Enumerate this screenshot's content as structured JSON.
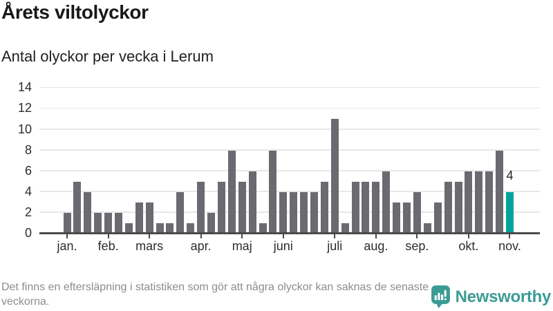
{
  "header": {
    "title": "Årets viltolyckor",
    "subtitle": "Antal olyckor per vecka i Lerum"
  },
  "chart_data": {
    "type": "bar",
    "title": "Årets viltolyckor",
    "subtitle": "Antal olyckor per vecka i Lerum",
    "x_unit": "vecka",
    "values": [
      2,
      5,
      4,
      2,
      2,
      2,
      1,
      3,
      3,
      1,
      1,
      4,
      1,
      5,
      2,
      5,
      8,
      5,
      6,
      1,
      8,
      4,
      4,
      4,
      4,
      5,
      11,
      1,
      5,
      5,
      5,
      6,
      3,
      3,
      4,
      1,
      3,
      5,
      5,
      6,
      6,
      6,
      8,
      4
    ],
    "highlight": {
      "index": 43,
      "label": "4"
    },
    "month_ticks": [
      {
        "label": "jan.",
        "index": 0
      },
      {
        "label": "feb.",
        "index": 4
      },
      {
        "label": "mars",
        "index": 8
      },
      {
        "label": "apr.",
        "index": 13
      },
      {
        "label": "maj",
        "index": 17
      },
      {
        "label": "juni",
        "index": 21
      },
      {
        "label": "juli",
        "index": 26
      },
      {
        "label": "aug.",
        "index": 30
      },
      {
        "label": "sep.",
        "index": 34
      },
      {
        "label": "okt.",
        "index": 39
      },
      {
        "label": "nov.",
        "index": 43
      }
    ],
    "yticks": [
      0,
      2,
      4,
      6,
      8,
      10,
      12,
      14
    ],
    "ylim": [
      0,
      14
    ],
    "grid": true,
    "legend": false,
    "colors": {
      "bar": "#6a6a70",
      "highlight": "#00a49c",
      "axis": "#4a4a4e",
      "grid": "#e7e7e7",
      "tick_label": "#2d2d2d"
    }
  },
  "footer": {
    "note": "Det finns en eftersläpning i statistiken som gör att några olyckor kan saknas de senaste veckorna.",
    "brand": "Newsworthy",
    "brand_color": "#3b9b94"
  }
}
